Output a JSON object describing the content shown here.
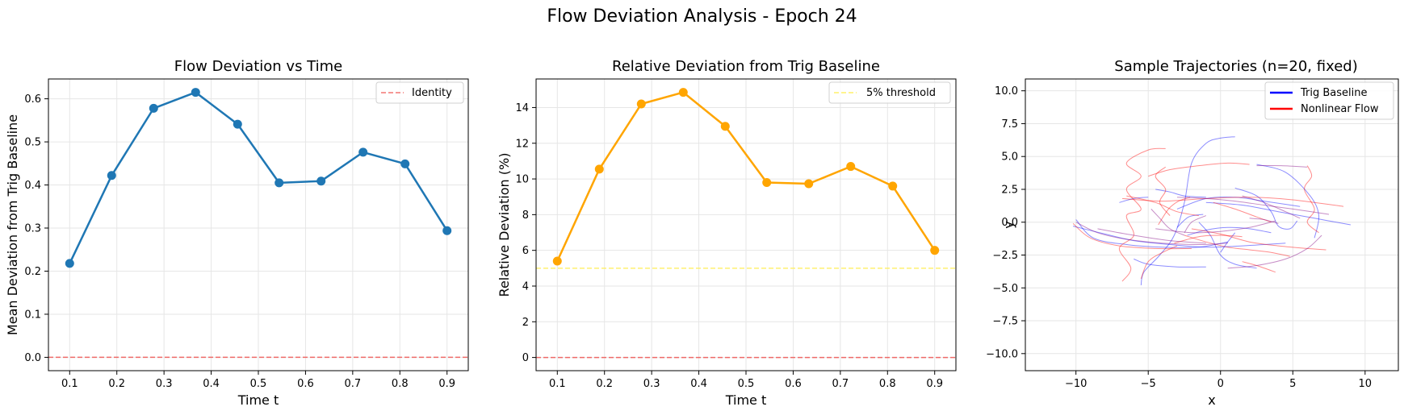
{
  "suptitle": "Flow Deviation Analysis - Epoch 24",
  "chart_data": [
    {
      "type": "line",
      "title": "Flow Deviation vs Time",
      "xlabel": "Time t",
      "ylabel": "Mean Deviation from Trig Baseline",
      "xlim": [
        0.055,
        0.945
      ],
      "ylim": [
        -0.031,
        0.646
      ],
      "xticks": [
        "0.1",
        "0.2",
        "0.3",
        "0.4",
        "0.5",
        "0.6",
        "0.7",
        "0.8",
        "0.9"
      ],
      "yticks": [
        "0.0",
        "0.1",
        "0.2",
        "0.3",
        "0.4",
        "0.5",
        "0.6"
      ],
      "grid": true,
      "legend_position": "top-right",
      "series": [
        {
          "color": "#1f77b4",
          "x": [
            0.1,
            0.189,
            0.278,
            0.367,
            0.456,
            0.544,
            0.633,
            0.722,
            0.811,
            0.9
          ],
          "y": [
            0.218,
            0.422,
            0.578,
            0.615,
            0.541,
            0.405,
            0.409,
            0.476,
            0.449,
            0.294
          ]
        }
      ],
      "reference_line": {
        "name": "Identity",
        "y": 0.0,
        "color": "#ef5350",
        "style": "dashed"
      }
    },
    {
      "type": "line",
      "title": "Relative Deviation from Trig Baseline",
      "xlabel": "Time t",
      "ylabel": "Relative Deviation (%)",
      "xlim": [
        0.055,
        0.945
      ],
      "ylim": [
        -0.74,
        15.6
      ],
      "xticks": [
        "0.1",
        "0.2",
        "0.3",
        "0.4",
        "0.5",
        "0.6",
        "0.7",
        "0.8",
        "0.9"
      ],
      "yticks": [
        "0",
        "2",
        "4",
        "6",
        "8",
        "10",
        "12",
        "14"
      ],
      "grid": true,
      "legend_position": "top-right",
      "series": [
        {
          "color": "#ffa500",
          "x": [
            0.1,
            0.189,
            0.278,
            0.367,
            0.456,
            0.544,
            0.633,
            0.722,
            0.811,
            0.9
          ],
          "y": [
            5.4,
            10.55,
            14.2,
            14.85,
            12.95,
            9.8,
            9.73,
            10.7,
            9.6,
            6.0
          ]
        }
      ],
      "reference_lines": [
        {
          "name": "5% threshold",
          "y": 5.0,
          "color": "#ffee58",
          "style": "dashed"
        },
        {
          "y": 0.0,
          "color": "#ef5350",
          "style": "dashed"
        }
      ]
    },
    {
      "type": "line",
      "title": "Sample Trajectories (n=20, fixed)",
      "xlabel": "x",
      "ylabel": "y",
      "xlim": [
        -13.5,
        12.3
      ],
      "ylim": [
        -11.3,
        10.9
      ],
      "xticks": [
        "−10",
        "−5",
        "0",
        "5",
        "10"
      ],
      "yticks": [
        "−10.0",
        "−7.5",
        "−5.0",
        "−2.5",
        "0.0",
        "2.5",
        "5.0",
        "7.5",
        "10.0"
      ],
      "grid": true,
      "legend_position": "top-right",
      "legend": [
        {
          "name": "Trig Baseline",
          "color": "#0000ff"
        },
        {
          "name": "Nonlinear Flow",
          "color": "#ff0000"
        }
      ],
      "trajectories": [
        {
          "color": "#0000ff",
          "points": [
            [
              -10.0,
              0.2
            ],
            [
              -8.8,
              -1.2
            ],
            [
              -6.5,
              -1.7
            ],
            [
              -4.0,
              -1.9
            ],
            [
              -1.5,
              -1.9
            ],
            [
              0.5,
              -1.5
            ]
          ]
        },
        {
          "color": "#0000ff",
          "points": [
            [
              -5.5,
              -4.8
            ],
            [
              -5.3,
              -3.8
            ],
            [
              -4.2,
              -2.5
            ],
            [
              -3.2,
              -1.0
            ],
            [
              -2.5,
              1.5
            ],
            [
              -2.0,
              4.5
            ],
            [
              -1.0,
              6.0
            ],
            [
              0.0,
              6.4
            ],
            [
              1.0,
              6.5
            ]
          ]
        },
        {
          "color": "#0000ff",
          "points": [
            [
              -6.0,
              -2.8
            ],
            [
              -5.0,
              -3.2
            ],
            [
              -3.0,
              -3.4
            ],
            [
              -1.0,
              -3.4
            ]
          ]
        },
        {
          "color": "#0000ff",
          "points": [
            [
              -10.2,
              -0.3
            ],
            [
              -8.0,
              -0.9
            ],
            [
              -6.0,
              -1.4
            ],
            [
              -3.5,
              -1.7
            ],
            [
              -1.0,
              -1.9
            ],
            [
              1.5,
              -1.8
            ],
            [
              4.5,
              -1.6
            ]
          ]
        },
        {
          "color": "#0000ff",
          "points": [
            [
              -3.0,
              1.0
            ],
            [
              -1.0,
              1.8
            ],
            [
              1.0,
              1.9
            ],
            [
              3.0,
              1.6
            ],
            [
              5.5,
              1.2
            ]
          ]
        },
        {
          "color": "#0000ff",
          "points": [
            [
              -2.3,
              -1.0
            ],
            [
              -1.0,
              -0.6
            ],
            [
              0.5,
              -0.4
            ],
            [
              2.0,
              -0.5
            ],
            [
              3.5,
              -0.8
            ]
          ]
        },
        {
          "color": "#0000ff",
          "points": [
            [
              1.0,
              2.6
            ],
            [
              2.5,
              2.0
            ],
            [
              3.5,
              0.8
            ],
            [
              4.0,
              -0.3
            ],
            [
              4.8,
              -0.5
            ],
            [
              5.3,
              0.1
            ]
          ]
        },
        {
          "color": "#0000ff",
          "points": [
            [
              2.5,
              4.4
            ],
            [
              4.5,
              3.8
            ],
            [
              6.2,
              2.0
            ],
            [
              6.8,
              0.5
            ],
            [
              6.5,
              -1.2
            ]
          ]
        },
        {
          "color": "#0000ff",
          "points": [
            [
              -1.0,
              1.5
            ],
            [
              1.5,
              1.3
            ],
            [
              4.0,
              0.8
            ],
            [
              6.5,
              0.3
            ],
            [
              9.0,
              -0.2
            ]
          ]
        },
        {
          "color": "#0000ff",
          "points": [
            [
              -1.5,
              0.0
            ],
            [
              -0.7,
              -1.0
            ],
            [
              0.0,
              -2.5
            ],
            [
              1.0,
              -3.2
            ],
            [
              2.5,
              -3.5
            ]
          ]
        },
        {
          "color": "#0000ff",
          "points": [
            [
              -1.2,
              0.6
            ],
            [
              -2.2,
              0.4
            ],
            [
              -3.0,
              -0.4
            ]
          ]
        },
        {
          "color": "#0000ff",
          "points": [
            [
              -1.0,
              1.9
            ],
            [
              -2.5,
              2.0
            ],
            [
              -3.5,
              2.3
            ],
            [
              -4.5,
              2.5
            ]
          ]
        },
        {
          "color": "#0000ff",
          "points": [
            [
              -7.0,
              1.5
            ],
            [
              -6.0,
              1.8
            ],
            [
              -5.0,
              1.9
            ]
          ]
        },
        {
          "color": "#0000ff",
          "points": [
            [
              0.0,
              -2.3
            ],
            [
              0.5,
              -1.5
            ],
            [
              1.0,
              -0.8
            ]
          ]
        },
        {
          "color": "#ff0000",
          "points": [
            [
              -10.2,
              -0.1
            ],
            [
              -9.0,
              -1.2
            ],
            [
              -7.0,
              -1.8
            ],
            [
              -4.5,
              -2.0
            ],
            [
              -2.0,
              -2.0
            ]
          ]
        },
        {
          "color": "#ff0000",
          "points": [
            [
              -6.8,
              -4.5
            ],
            [
              -6.2,
              -3.5
            ],
            [
              -7.0,
              -2.0
            ],
            [
              -6.0,
              -1.0
            ],
            [
              -6.5,
              0.5
            ],
            [
              -5.5,
              1.0
            ],
            [
              -6.5,
              2.5
            ],
            [
              -5.5,
              3.5
            ],
            [
              -6.5,
              4.5
            ],
            [
              -5.0,
              5.5
            ],
            [
              -3.8,
              5.6
            ]
          ]
        },
        {
          "color": "#ff0000",
          "points": [
            [
              -6.5,
              2.0
            ],
            [
              -4.5,
              1.5
            ],
            [
              -3.0,
              0.8
            ],
            [
              -1.5,
              0.5
            ]
          ]
        },
        {
          "color": "#ff0000",
          "points": [
            [
              -6.8,
              1.8
            ],
            [
              -4.0,
              1.6
            ],
            [
              -1.0,
              1.8
            ],
            [
              2.0,
              1.9
            ],
            [
              5.0,
              1.7
            ],
            [
              8.5,
              1.2
            ]
          ]
        },
        {
          "color": "#ff0000",
          "points": [
            [
              -3.8,
              4.2
            ],
            [
              -4.5,
              3.5
            ],
            [
              -3.8,
              2.5
            ],
            [
              -4.2,
              1.5
            ],
            [
              -3.5,
              0.5
            ]
          ]
        },
        {
          "color": "#ff0000",
          "points": [
            [
              -5.0,
              3.5
            ],
            [
              -3.5,
              4.0
            ],
            [
              -1.5,
              4.3
            ],
            [
              0.5,
              4.5
            ],
            [
              2.0,
              4.4
            ]
          ]
        },
        {
          "color": "#ff0000",
          "points": [
            [
              -2.0,
              -0.5
            ],
            [
              0.0,
              -0.9
            ],
            [
              2.0,
              -1.5
            ],
            [
              4.0,
              -1.8
            ],
            [
              6.0,
              -2.0
            ],
            [
              7.3,
              -2.1
            ]
          ]
        },
        {
          "color": "#ff0000",
          "points": [
            [
              -2.5,
              -1.0
            ],
            [
              -1.0,
              -1.5
            ],
            [
              0.5,
              -1.9
            ],
            [
              2.0,
              -2.1
            ],
            [
              3.5,
              -2.3
            ],
            [
              4.8,
              -2.6
            ]
          ]
        },
        {
          "color": "#ff0000",
          "points": [
            [
              1.5,
              -3.0
            ],
            [
              2.5,
              -3.3
            ],
            [
              3.8,
              -3.8
            ]
          ]
        },
        {
          "color": "#ff0000",
          "points": [
            [
              -5.5,
              -4.3
            ],
            [
              -5.0,
              -3.0
            ],
            [
              -4.0,
              -2.3
            ],
            [
              -3.0,
              -1.8
            ]
          ]
        },
        {
          "color": "#ff0000",
          "points": [
            [
              6.0,
              4.3
            ],
            [
              6.3,
              3.5
            ],
            [
              5.8,
              2.5
            ],
            [
              6.5,
              1.0
            ],
            [
              6.0,
              0.0
            ],
            [
              6.8,
              -0.8
            ]
          ]
        },
        {
          "color": "#ff0000",
          "points": [
            [
              -3.2,
              -1.6
            ],
            [
              -1.5,
              -1.1
            ],
            [
              0.0,
              -1.0
            ],
            [
              1.5,
              -1.1
            ]
          ]
        },
        {
          "color": "#ff0000",
          "points": [
            [
              -0.5,
              1.5
            ],
            [
              1.0,
              1.0
            ],
            [
              2.5,
              0.4
            ],
            [
              3.5,
              0.0
            ]
          ]
        },
        {
          "color": "#ff0000",
          "points": [
            [
              -4.3,
              -0.2
            ],
            [
              -3.6,
              1.0
            ],
            [
              -2.9,
              1.6
            ],
            [
              -2.1,
              1.9
            ]
          ]
        },
        {
          "color": "#800080",
          "points": [
            [
              -10.0,
              0.0
            ],
            [
              -8.5,
              -0.8
            ],
            [
              -6.5,
              -1.3
            ],
            [
              -4.0,
              -1.6
            ],
            [
              -1.5,
              -1.7
            ],
            [
              0.5,
              -1.6
            ]
          ]
        },
        {
          "color": "#800080",
          "points": [
            [
              -4.5,
              -0.5
            ],
            [
              -2.0,
              -0.8
            ],
            [
              0.0,
              -0.7
            ],
            [
              2.0,
              -0.4
            ],
            [
              3.8,
              0.1
            ]
          ]
        },
        {
          "color": "#800080",
          "points": [
            [
              0.5,
              -3.5
            ],
            [
              2.5,
              -3.3
            ],
            [
              4.5,
              -2.8
            ],
            [
              6.0,
              -2.0
            ],
            [
              7.0,
              -1.0
            ]
          ]
        },
        {
          "color": "#800080",
          "points": [
            [
              2.5,
              4.3
            ],
            [
              4.2,
              4.3
            ],
            [
              6.0,
              4.2
            ]
          ]
        },
        {
          "color": "#800080",
          "points": [
            [
              -3.0,
              1.9
            ],
            [
              -1.0,
              1.8
            ],
            [
              1.0,
              1.6
            ],
            [
              3.0,
              1.3
            ],
            [
              5.0,
              1.0
            ],
            [
              7.5,
              0.6
            ]
          ]
        },
        {
          "color": "#800080",
          "points": [
            [
              -8.5,
              -0.5
            ],
            [
              -6.0,
              -1.0
            ],
            [
              -3.5,
              -1.4
            ],
            [
              -1.0,
              -1.6
            ]
          ]
        },
        {
          "color": "#800080",
          "points": [
            [
              -1.0,
              0.5
            ],
            [
              -2.0,
              0.0
            ],
            [
              -2.5,
              -0.8
            ]
          ]
        },
        {
          "color": "#800080",
          "points": [
            [
              1.5,
              2.0
            ],
            [
              3.0,
              1.5
            ],
            [
              4.5,
              0.8
            ],
            [
              5.5,
              0.3
            ]
          ]
        },
        {
          "color": "#800080",
          "points": [
            [
              2.0,
              0.3
            ],
            [
              3.0,
              0.2
            ],
            [
              4.0,
              -0.1
            ]
          ]
        },
        {
          "color": "#800080",
          "points": [
            [
              -4.8,
              1.0
            ],
            [
              -4.2,
              0.3
            ],
            [
              -3.5,
              -0.5
            ],
            [
              -2.5,
              -1.0
            ]
          ]
        }
      ]
    }
  ]
}
